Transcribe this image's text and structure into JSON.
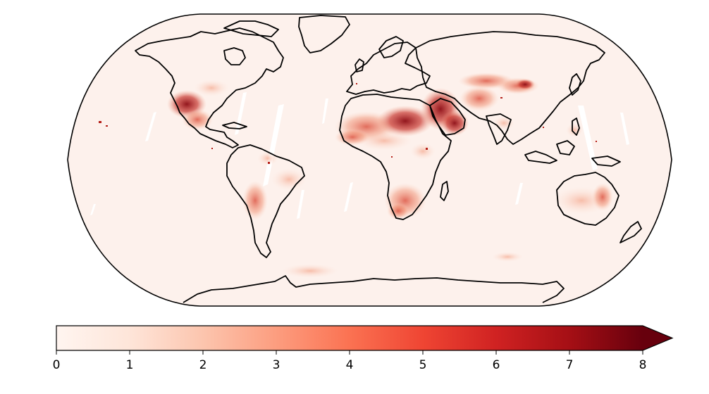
{
  "map": {
    "projection": "robinson",
    "colormap": "Reds",
    "land_outline_color": "#000000",
    "ocean_background_color": "#fdf1ec",
    "hotspot_regions": [
      "southwestern-usa-mexico",
      "sahara",
      "arabian-peninsula",
      "iran-pakistan",
      "central-asia",
      "gobi-taklamakan",
      "southern-africa",
      "andes-atacama",
      "australia-interior",
      "antarctic-coast"
    ]
  },
  "colorbar": {
    "min": 0,
    "max": 8,
    "extend": "max",
    "ticks": [
      {
        "value": 0,
        "label": "0"
      },
      {
        "value": 1,
        "label": "1"
      },
      {
        "value": 2,
        "label": "2"
      },
      {
        "value": 3,
        "label": "3"
      },
      {
        "value": 4,
        "label": "4"
      },
      {
        "value": 5,
        "label": "5"
      },
      {
        "value": 6,
        "label": "6"
      },
      {
        "value": 7,
        "label": "7"
      },
      {
        "value": 8,
        "label": "8"
      }
    ],
    "colors": {
      "low": "#fff5f0",
      "mid_low": "#fcbba1",
      "mid": "#fb6a4a",
      "mid_high": "#cb181d",
      "high": "#67000d"
    }
  }
}
